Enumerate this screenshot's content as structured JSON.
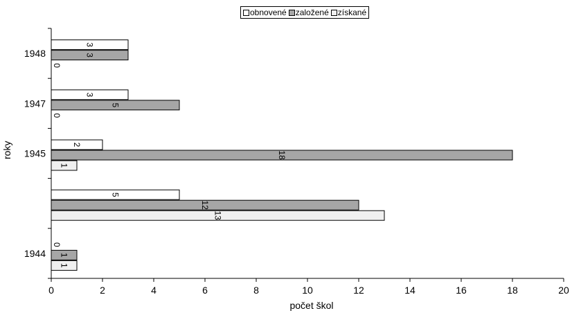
{
  "chart_data": {
    "type": "bar",
    "orientation": "horizontal",
    "categories": [
      "1948",
      "1947",
      "1945",
      "",
      "1944"
    ],
    "series": [
      {
        "name": "obnovené",
        "color": "#ffffff",
        "values": [
          3,
          3,
          2,
          5,
          0
        ]
      },
      {
        "name": "založené",
        "color": "#a6a6a6",
        "values": [
          3,
          5,
          18,
          12,
          1
        ]
      },
      {
        "name": "získané",
        "color": "#f0f0f0",
        "values": [
          0,
          0,
          1,
          13,
          1
        ]
      }
    ],
    "xlabel": "počet škol",
    "ylabel": "roky",
    "xlim": [
      0,
      20
    ],
    "x_ticks": [
      "0",
      "2",
      "4",
      "6",
      "8",
      "10",
      "12",
      "14",
      "16",
      "18",
      "20"
    ],
    "data_labels": "rotated 90° clockwise",
    "legend_position": "top",
    "grid": false
  }
}
